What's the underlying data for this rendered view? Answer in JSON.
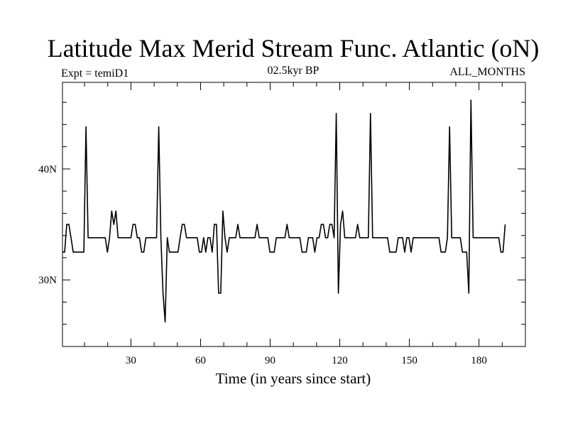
{
  "chart_data": {
    "type": "line",
    "title": "Latitude Max Merid Stream Func. Atlantic (oN)",
    "subtitle_left": "Expt = temiD1",
    "subtitle_center": "02.5kyr BP",
    "subtitle_right": "ALL_MONTHS",
    "xlabel": "Time (in years since start)",
    "ylabel": "",
    "xlim": [
      0.5,
      200
    ],
    "ylim": [
      24,
      47.8
    ],
    "x_ticks": [
      30,
      60,
      90,
      120,
      150,
      180
    ],
    "x_tick_labels": [
      "30",
      "60",
      "90",
      "120",
      "150",
      "180"
    ],
    "x_minor_step": 10,
    "y_ticks": [
      30,
      40
    ],
    "y_tick_labels": [
      "30N",
      "40N"
    ],
    "y_minor_step": 2,
    "grid": false,
    "line_color": "#000000",
    "series": [
      {
        "values": [
          32.5,
          32.5,
          35,
          35,
          33.8,
          32.5,
          32.5,
          32.5,
          32.5,
          32.5,
          32.5,
          43.8,
          33.8,
          33.8,
          33.8,
          33.8,
          33.8,
          33.8,
          33.8,
          33.8,
          33.8,
          32.5,
          33.8,
          36.2,
          35,
          36.2,
          33.8,
          33.8,
          33.8,
          33.8,
          33.8,
          33.8,
          33.8,
          35,
          35,
          33.8,
          33.8,
          32.5,
          32.5,
          33.8,
          33.8,
          33.8,
          33.8,
          33.8,
          33.8,
          43.8,
          33.8,
          28.8,
          26.2,
          33.8,
          32.5,
          32.5,
          32.5,
          32.5,
          32.5,
          33.8,
          35,
          35,
          33.8,
          33.8,
          33.8,
          33.8,
          33.8,
          33.8,
          32.5,
          32.5,
          33.8,
          32.5,
          33.8,
          33.8,
          32.5,
          35,
          35,
          28.8,
          28.8,
          36.2,
          33.8,
          32.5,
          33.8,
          33.8,
          33.8,
          33.8,
          35,
          33.8,
          33.8,
          33.8,
          33.8,
          33.8,
          33.8,
          33.8,
          33.8,
          35,
          33.8,
          33.8,
          33.8,
          33.8,
          33.8,
          32.5,
          32.5,
          32.5,
          33.8,
          33.8,
          33.8,
          33.8,
          33.8,
          35,
          33.8,
          33.8,
          33.8,
          33.8,
          33.8,
          33.8,
          32.5,
          32.5,
          32.5,
          33.8,
          33.8,
          33.8,
          32.5,
          33.8,
          33.8,
          35,
          35,
          33.8,
          33.8,
          35,
          35,
          33.8,
          45,
          28.8,
          35,
          36.2,
          33.8,
          33.8,
          33.8,
          33.8,
          33.8,
          33.8,
          35,
          33.8,
          33.8,
          33.8,
          33.8,
          33.8,
          45,
          33.8,
          33.8,
          33.8,
          33.8,
          33.8,
          33.8,
          33.8,
          33.8,
          32.5,
          32.5,
          32.5,
          32.5,
          33.8,
          33.8,
          33.8,
          32.5,
          33.8,
          33.8,
          32.5,
          33.8,
          33.8,
          33.8,
          33.8,
          33.8,
          33.8,
          33.8,
          33.8,
          33.8,
          33.8,
          33.8,
          33.8,
          33.8,
          32.5,
          32.5,
          32.5,
          33.8,
          43.8,
          33.8,
          33.8,
          33.8,
          33.8,
          33.8,
          32.5,
          32.5,
          32.5,
          28.8,
          46.2,
          33.8,
          33.8,
          33.8,
          33.8,
          33.8,
          33.8,
          33.8,
          33.8,
          33.8,
          33.8,
          33.8,
          33.8,
          33.8,
          32.5,
          32.5,
          35
        ],
        "x_start": 0.5,
        "x_step": 0.9217
      }
    ]
  }
}
